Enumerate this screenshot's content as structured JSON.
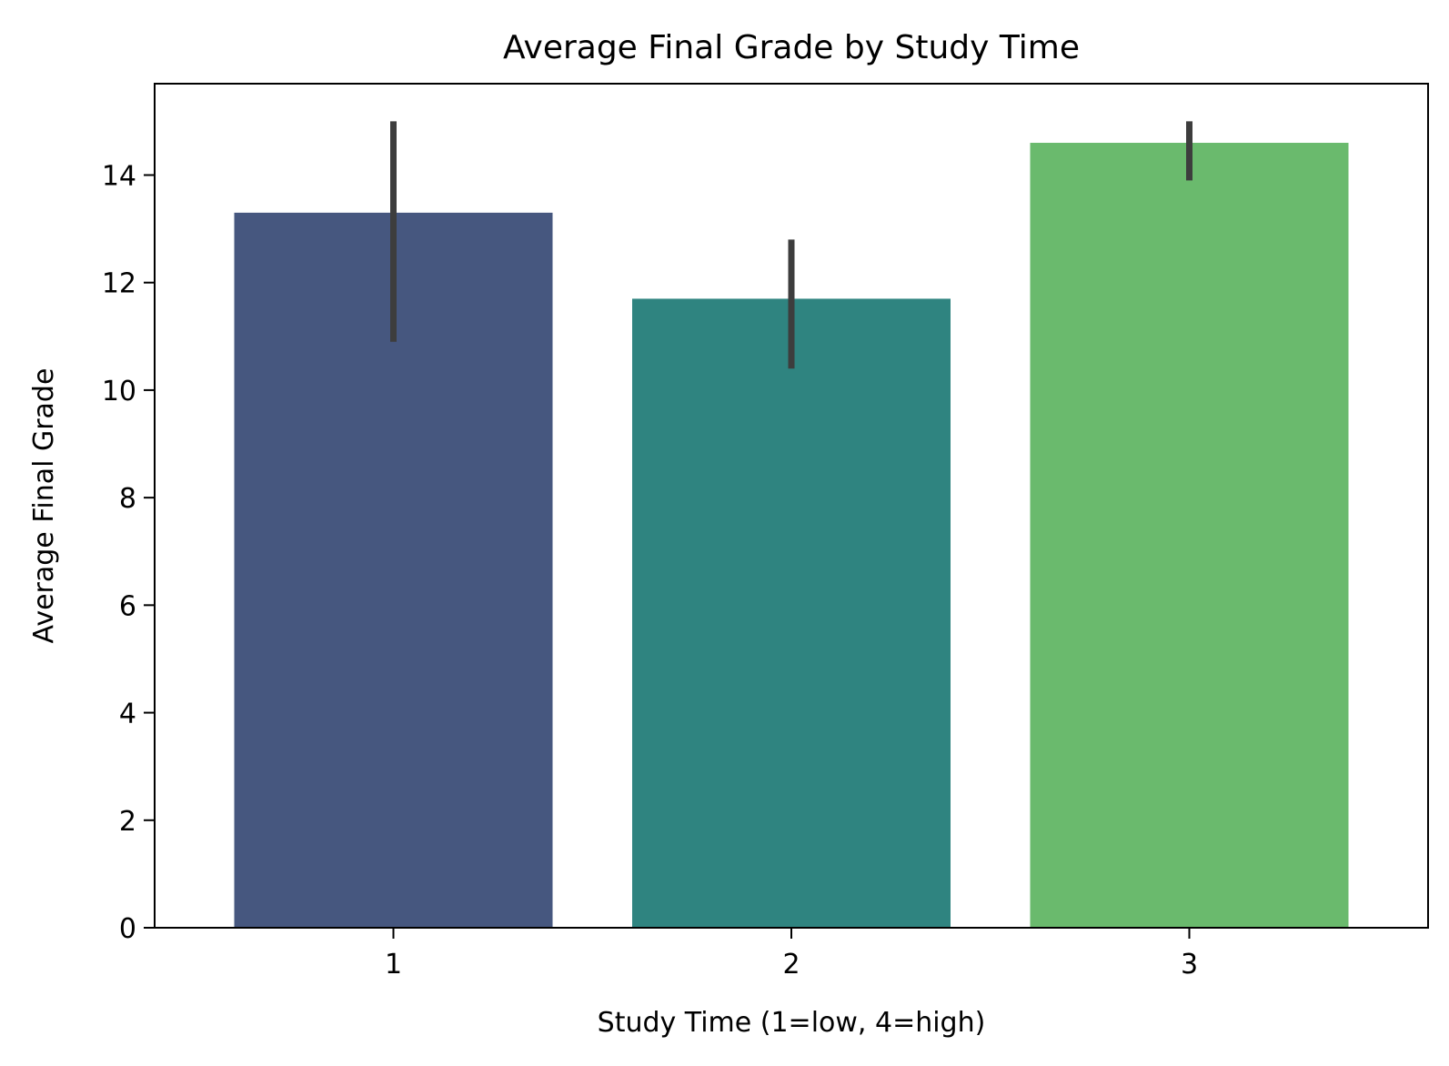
{
  "chart_data": {
    "type": "bar",
    "title": "Average Final Grade by Study Time",
    "xlabel": "Study Time (1=low, 4=high)",
    "ylabel": "Average Final Grade",
    "categories": [
      "1",
      "2",
      "3"
    ],
    "values": [
      13.3,
      11.7,
      14.6
    ],
    "error_bars": [
      {
        "low": 10.9,
        "high": 15.0
      },
      {
        "low": 10.4,
        "high": 12.8
      },
      {
        "low": 13.9,
        "high": 15.0
      }
    ],
    "colors": [
      "#46577f",
      "#2f8480",
      "#6aba6d"
    ],
    "error_bar_color": "#3d3d3d",
    "ylim": [
      0,
      15.7
    ],
    "yticks": [
      0,
      2,
      4,
      6,
      8,
      10,
      12,
      14
    ],
    "grid": false,
    "legend": false
  }
}
